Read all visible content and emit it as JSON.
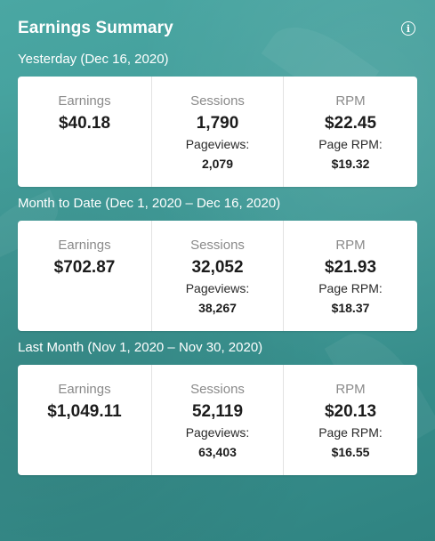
{
  "header": {
    "title": "Earnings Summary",
    "info_icon": "info-icon"
  },
  "sections": [
    {
      "label": "Yesterday (Dec 16, 2020)",
      "earnings_label": "Earnings",
      "earnings": "$40.18",
      "sessions_label": "Sessions",
      "sessions": "1,790",
      "pageviews_label": "Pageviews:",
      "pageviews": "2,079",
      "rpm_label": "RPM",
      "rpm": "$22.45",
      "page_rpm_label": "Page RPM:",
      "page_rpm": "$19.32"
    },
    {
      "label": "Month to Date (Dec 1, 2020 – Dec 16, 2020)",
      "earnings_label": "Earnings",
      "earnings": "$702.87",
      "sessions_label": "Sessions",
      "sessions": "32,052",
      "pageviews_label": "Pageviews:",
      "pageviews": "38,267",
      "rpm_label": "RPM",
      "rpm": "$21.93",
      "page_rpm_label": "Page RPM:",
      "page_rpm": "$18.37"
    },
    {
      "label": "Last Month (Nov 1, 2020 – Nov 30, 2020)",
      "earnings_label": "Earnings",
      "earnings": "$1,049.11",
      "sessions_label": "Sessions",
      "sessions": "52,119",
      "pageviews_label": "Pageviews:",
      "pageviews": "63,403",
      "rpm_label": "RPM",
      "rpm": "$20.13",
      "page_rpm_label": "Page RPM:",
      "page_rpm": "$16.55"
    }
  ],
  "colors": {
    "background": "#3e9996",
    "card": "#ffffff",
    "label_gray": "#8a8a8a",
    "value_dark": "#1c1c1c"
  }
}
